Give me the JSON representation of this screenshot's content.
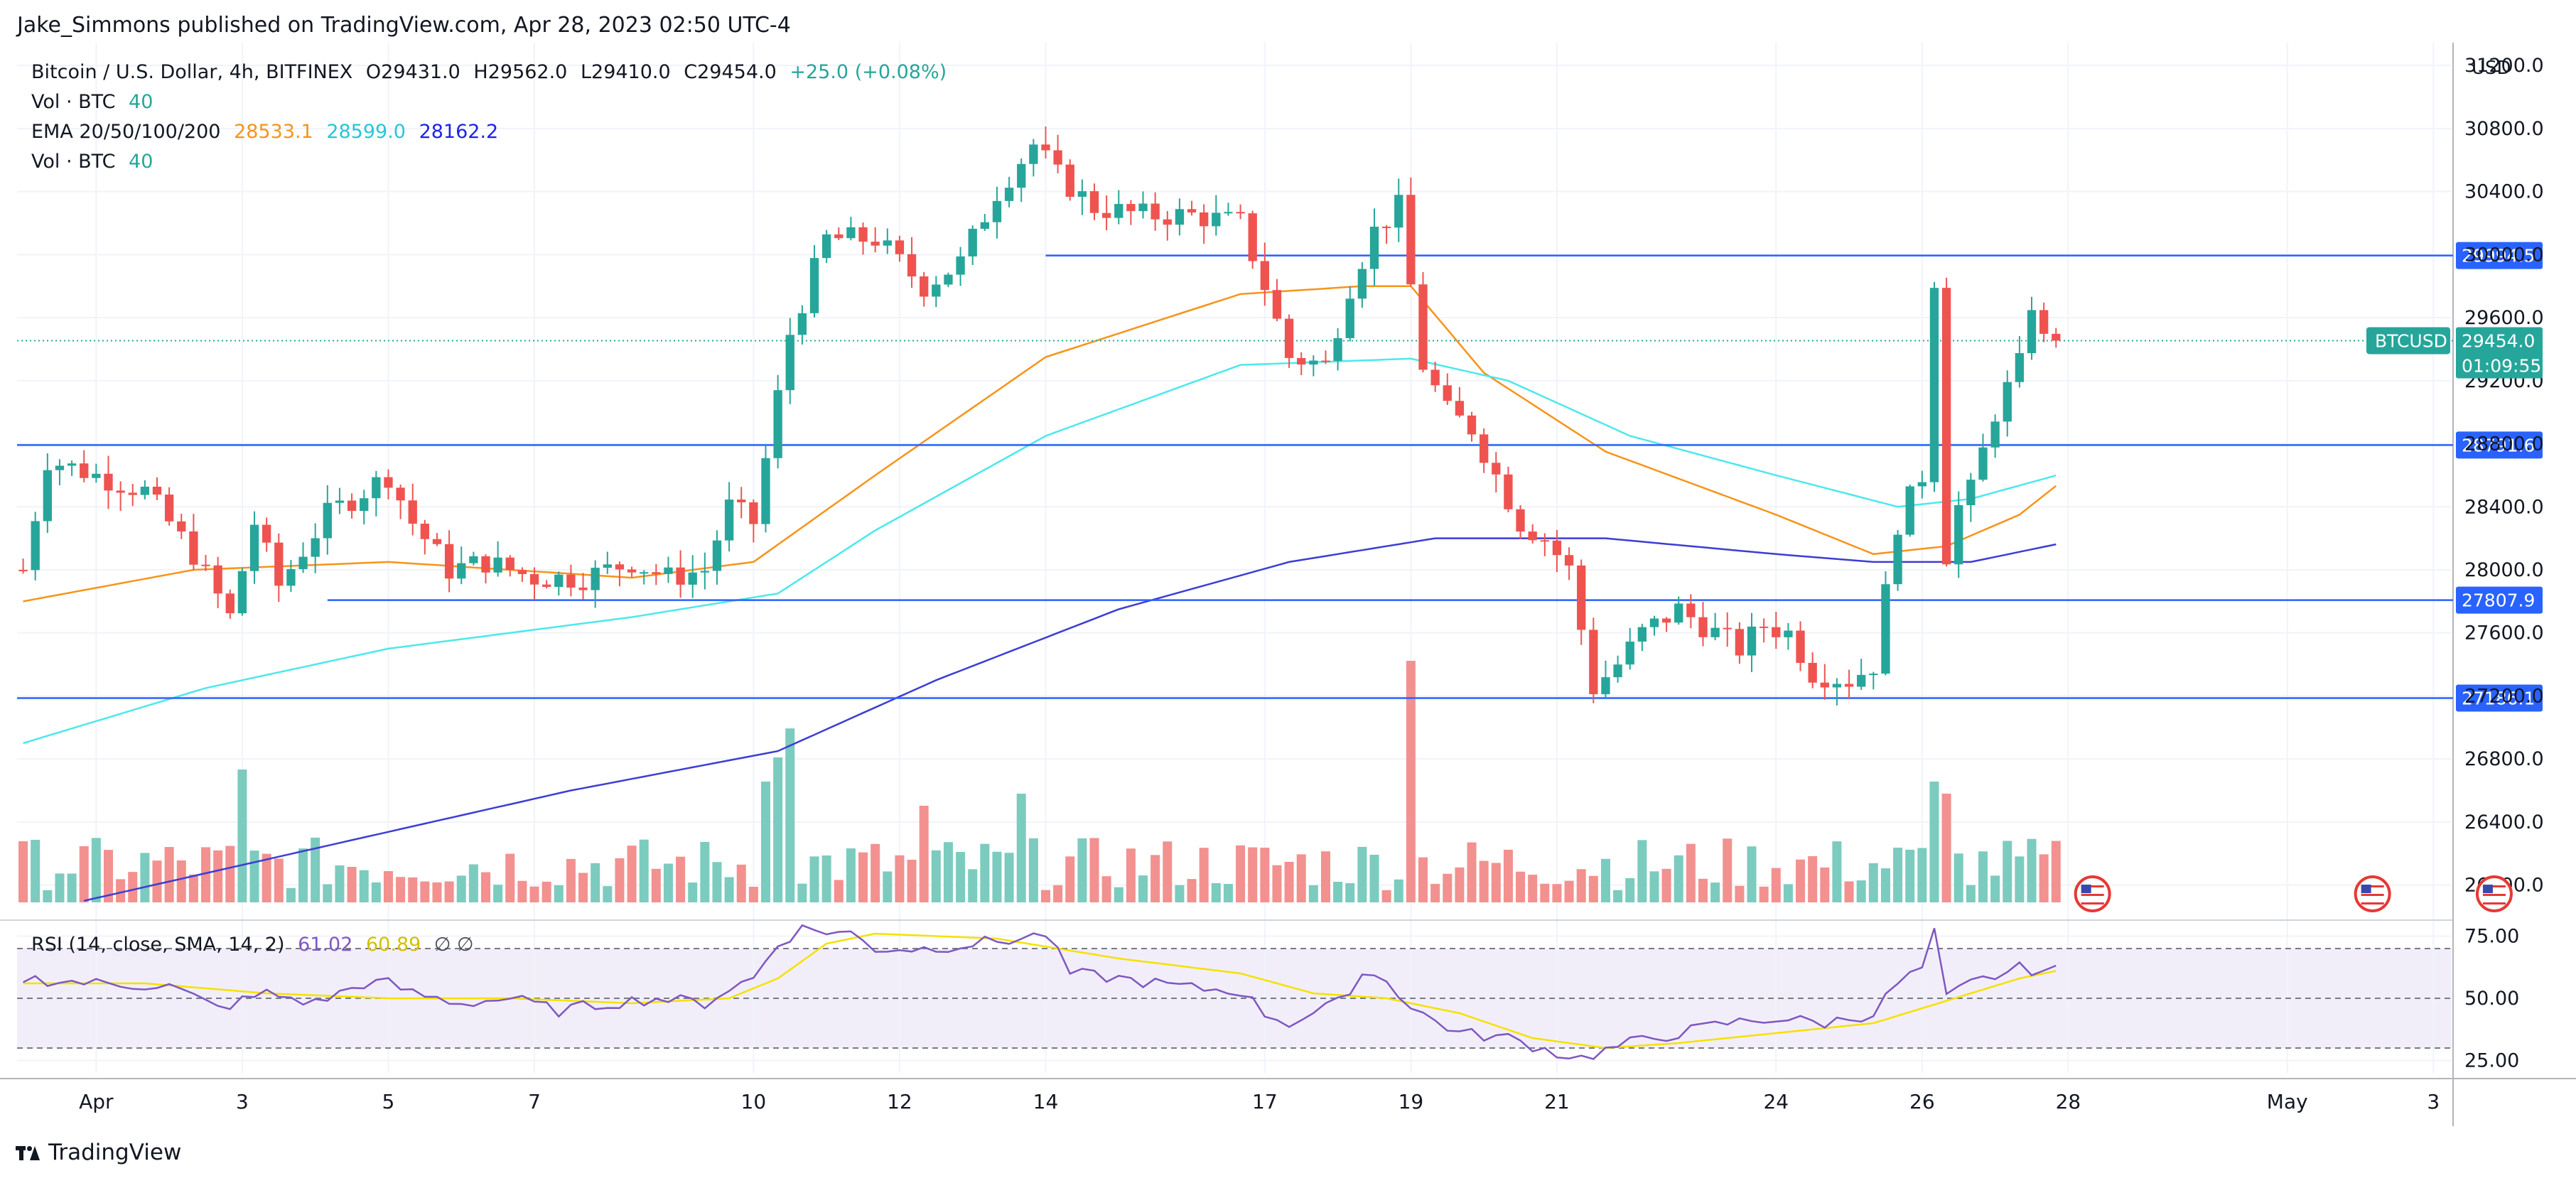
{
  "publisher": "Jake_Simmons published on TradingView.com, Apr 28, 2023 02:50 UTC-4",
  "brand": "TradingView",
  "legend": {
    "symbol": "Bitcoin / U.S. Dollar, 4h, BITFINEX",
    "open": "O29431.0",
    "high": "H29562.0",
    "low": "L29410.0",
    "close": "C29454.0",
    "change": "+25.0 (+0.08%)",
    "vol1": "Vol · BTC",
    "vol1_val": "40",
    "ema": "EMA 20/50/100/200",
    "ema20": "28533.1",
    "ema50": "28599.0",
    "ema100": "28162.2",
    "vol2": "Vol · BTC",
    "vol2_val": "40",
    "rsi": "RSI (14, close, SMA, 14, 2)",
    "rsi_val": "61.02",
    "rsi_sma": "60.89",
    "rsi_icons": "∅  ∅"
  },
  "colors": {
    "up": "#26a69a",
    "down": "#ef5350",
    "up_vol": "#7ccbbf",
    "down_vol": "#f2918f",
    "level": "#2962ff",
    "ema20": "#f7931a",
    "ema50": "#4de8ec",
    "ema100": "#3d3dd4",
    "rsi": "#7e57c2",
    "rsi_sma": "#f5e100",
    "badge_btc": "#26a69a"
  },
  "chart_data": {
    "type": "candlestick",
    "symbol": "Bitcoin / U.S. Dollar",
    "exchange": "BITFINEX",
    "timeframe": "4h",
    "currency": "USD",
    "ylim": [
      25800,
      31300
    ],
    "y_ticks": [
      26000,
      26400,
      26800,
      27200,
      27600,
      28000,
      28400,
      28800,
      29200,
      29600,
      30000,
      30400,
      30800,
      31200
    ],
    "y_tick_labels": [
      "26000.0",
      "26400.0",
      "26800.0",
      "27200.0",
      "27600.0",
      "28000.0",
      "28400.0",
      "28800.0",
      "29200.0",
      "29600.0",
      "30000.0",
      "30400.0",
      "30800.0",
      "31200.0"
    ],
    "x_ticks": [
      {
        "label": "Apr",
        "bar": 6
      },
      {
        "label": "3",
        "bar": 18
      },
      {
        "label": "5",
        "bar": 30
      },
      {
        "label": "7",
        "bar": 42
      },
      {
        "label": "10",
        "bar": 60
      },
      {
        "label": "12",
        "bar": 72
      },
      {
        "label": "14",
        "bar": 84
      },
      {
        "label": "17",
        "bar": 102
      },
      {
        "label": "19",
        "bar": 114
      },
      {
        "label": "21",
        "bar": 126
      },
      {
        "label": "24",
        "bar": 144
      },
      {
        "label": "26",
        "bar": 156
      },
      {
        "label": "28",
        "bar": 168
      },
      {
        "label": "May",
        "bar": 186
      },
      {
        "label": "3",
        "bar": 198
      }
    ],
    "total_slots": 200,
    "levels": [
      {
        "price": 29994.5,
        "label": "29994.5",
        "from_bar": 84
      },
      {
        "price": 28791.6,
        "label": "28791.6",
        "from_bar": 0
      },
      {
        "price": 27807.9,
        "label": "27807.9",
        "from_bar": 25
      },
      {
        "price": 27186.1,
        "label": "27186.1",
        "from_bar": 0
      }
    ],
    "last_price": {
      "price": 29454.0,
      "label": "29454.0",
      "countdown": "01:09:55",
      "tag": "BTCUSD"
    },
    "candle_anchors": [
      [
        0,
        28000
      ],
      [
        2,
        28700
      ],
      [
        6,
        28600
      ],
      [
        10,
        28500
      ],
      [
        14,
        28100
      ],
      [
        17,
        27700
      ],
      [
        19,
        28300
      ],
      [
        21,
        27900
      ],
      [
        25,
        28350
      ],
      [
        28,
        28500
      ],
      [
        30,
        28600
      ],
      [
        32,
        28300
      ],
      [
        35,
        28000
      ],
      [
        38,
        28050
      ],
      [
        42,
        27950
      ],
      [
        46,
        27950
      ],
      [
        50,
        28050
      ],
      [
        53,
        27950
      ],
      [
        56,
        28000
      ],
      [
        58,
        28400
      ],
      [
        60,
        28300
      ],
      [
        63,
        29500
      ],
      [
        66,
        30100
      ],
      [
        70,
        30100
      ],
      [
        74,
        29800
      ],
      [
        77,
        29950
      ],
      [
        80,
        30400
      ],
      [
        83,
        30700
      ],
      [
        85,
        30500
      ],
      [
        88,
        30300
      ],
      [
        92,
        30250
      ],
      [
        96,
        30250
      ],
      [
        100,
        30200
      ],
      [
        102,
        29800
      ],
      [
        104,
        29350
      ],
      [
        107,
        29300
      ],
      [
        109,
        29800
      ],
      [
        111,
        30150
      ],
      [
        113,
        30300
      ],
      [
        115,
        29300
      ],
      [
        117,
        29000
      ],
      [
        119,
        28900
      ],
      [
        121,
        28600
      ],
      [
        123,
        28300
      ],
      [
        125,
        28200
      ],
      [
        127,
        28000
      ],
      [
        129,
        27250
      ],
      [
        131,
        27400
      ],
      [
        133,
        27600
      ],
      [
        136,
        27750
      ],
      [
        139,
        27600
      ],
      [
        141,
        27500
      ],
      [
        143,
        27650
      ],
      [
        145,
        27600
      ],
      [
        147,
        27350
      ],
      [
        150,
        27300
      ],
      [
        152,
        27400
      ],
      [
        154,
        28300
      ],
      [
        156,
        28600
      ],
      [
        157,
        29850
      ],
      [
        158,
        28100
      ],
      [
        159,
        28400
      ],
      [
        160,
        28500
      ],
      [
        162,
        29000
      ],
      [
        164,
        29300
      ],
      [
        165,
        29700
      ],
      [
        166,
        29450
      ],
      [
        167,
        29460
      ]
    ],
    "volume_spikes": [
      [
        18,
        0.55
      ],
      [
        61,
        0.5
      ],
      [
        62,
        0.6
      ],
      [
        63,
        0.72
      ],
      [
        114,
        1.0
      ],
      [
        157,
        0.5
      ],
      [
        158,
        0.45
      ],
      [
        74,
        0.4
      ],
      [
        82,
        0.45
      ]
    ],
    "ema_series": {
      "ema20": [
        [
          0,
          27800
        ],
        [
          14,
          28000
        ],
        [
          30,
          28050
        ],
        [
          50,
          27950
        ],
        [
          60,
          28050
        ],
        [
          70,
          28600
        ],
        [
          84,
          29350
        ],
        [
          100,
          29750
        ],
        [
          110,
          29800
        ],
        [
          114,
          29800
        ],
        [
          120,
          29250
        ],
        [
          130,
          28750
        ],
        [
          144,
          28350
        ],
        [
          152,
          28100
        ],
        [
          158,
          28150
        ],
        [
          164,
          28350
        ],
        [
          167,
          28533
        ]
      ],
      "ema50": [
        [
          0,
          26900
        ],
        [
          15,
          27250
        ],
        [
          30,
          27500
        ],
        [
          50,
          27700
        ],
        [
          62,
          27850
        ],
        [
          70,
          28250
        ],
        [
          84,
          28850
        ],
        [
          100,
          29300
        ],
        [
          114,
          29340
        ],
        [
          122,
          29200
        ],
        [
          132,
          28850
        ],
        [
          144,
          28600
        ],
        [
          154,
          28400
        ],
        [
          160,
          28450
        ],
        [
          167,
          28599
        ]
      ],
      "ema100": [
        [
          5,
          25900
        ],
        [
          25,
          26250
        ],
        [
          45,
          26600
        ],
        [
          62,
          26850
        ],
        [
          75,
          27300
        ],
        [
          90,
          27750
        ],
        [
          104,
          28050
        ],
        [
          116,
          28200
        ],
        [
          130,
          28200
        ],
        [
          144,
          28100
        ],
        [
          152,
          28050
        ],
        [
          160,
          28050
        ],
        [
          167,
          28162
        ]
      ]
    },
    "rsi": {
      "ylim": [
        20,
        80
      ],
      "bands": [
        30,
        50,
        70
      ],
      "y_ticks": [
        25,
        50,
        75
      ],
      "y_tick_labels": [
        "25.00",
        "50.00",
        "75.00"
      ],
      "anchors": [
        [
          0,
          58
        ],
        [
          6,
          56
        ],
        [
          12,
          55
        ],
        [
          16,
          46
        ],
        [
          20,
          52
        ],
        [
          24,
          48
        ],
        [
          28,
          56
        ],
        [
          30,
          56
        ],
        [
          32,
          52
        ],
        [
          36,
          48
        ],
        [
          40,
          50
        ],
        [
          44,
          45
        ],
        [
          48,
          48
        ],
        [
          52,
          50
        ],
        [
          56,
          48
        ],
        [
          58,
          54
        ],
        [
          60,
          58
        ],
        [
          62,
          72
        ],
        [
          64,
          78
        ],
        [
          68,
          76
        ],
        [
          70,
          70
        ],
        [
          74,
          70
        ],
        [
          78,
          72
        ],
        [
          82,
          74
        ],
        [
          84,
          76
        ],
        [
          86,
          60
        ],
        [
          90,
          58
        ],
        [
          96,
          54
        ],
        [
          100,
          53
        ],
        [
          102,
          44
        ],
        [
          104,
          40
        ],
        [
          108,
          48
        ],
        [
          110,
          60
        ],
        [
          112,
          58
        ],
        [
          114,
          46
        ],
        [
          118,
          36
        ],
        [
          122,
          34
        ],
        [
          126,
          28
        ],
        [
          128,
          26
        ],
        [
          132,
          32
        ],
        [
          136,
          36
        ],
        [
          140,
          40
        ],
        [
          144,
          42
        ],
        [
          148,
          40
        ],
        [
          152,
          44
        ],
        [
          154,
          56
        ],
        [
          156,
          62
        ],
        [
          157,
          76
        ],
        [
          158,
          50
        ],
        [
          160,
          56
        ],
        [
          164,
          62
        ],
        [
          167,
          61
        ]
      ],
      "sma_anchors": [
        [
          0,
          56
        ],
        [
          10,
          56
        ],
        [
          20,
          52
        ],
        [
          30,
          50
        ],
        [
          40,
          50
        ],
        [
          50,
          48
        ],
        [
          58,
          50
        ],
        [
          62,
          58
        ],
        [
          66,
          72
        ],
        [
          70,
          76
        ],
        [
          80,
          74
        ],
        [
          90,
          66
        ],
        [
          100,
          60
        ],
        [
          106,
          52
        ],
        [
          112,
          50
        ],
        [
          118,
          44
        ],
        [
          124,
          34
        ],
        [
          130,
          30
        ],
        [
          136,
          32
        ],
        [
          144,
          36
        ],
        [
          152,
          40
        ],
        [
          156,
          46
        ],
        [
          160,
          52
        ],
        [
          164,
          58
        ],
        [
          167,
          61
        ]
      ]
    }
  }
}
